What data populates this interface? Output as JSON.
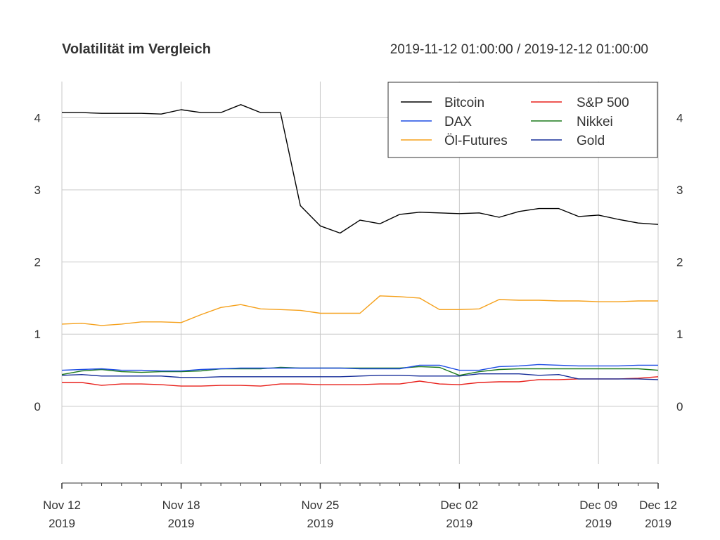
{
  "chart_data": {
    "type": "line",
    "title": "Volatilität im Vergleich",
    "subtitle": "2019-11-12 01:00:00 / 2019-12-12 01:00:00",
    "xlim": [
      "2019-11-12",
      "2019-12-12"
    ],
    "ylim": [
      -0.8,
      4.5
    ],
    "y_ticks": [
      "0",
      "1",
      "2",
      "3",
      "4"
    ],
    "x_ticks": [
      {
        "date": "2019-11-12",
        "line1": "Nov 12",
        "line2": "2019"
      },
      {
        "date": "2019-11-18",
        "line1": "Nov 18",
        "line2": "2019"
      },
      {
        "date": "2019-11-25",
        "line1": "Nov 25",
        "line2": "2019"
      },
      {
        "date": "2019-12-02",
        "line1": "Dec 02",
        "line2": "2019"
      },
      {
        "date": "2019-12-09",
        "line1": "Dec 09",
        "line2": "2019"
      },
      {
        "date": "2019-12-12",
        "line1": "Dec 12",
        "line2": "2019"
      }
    ],
    "grid": true,
    "legend_position": "top-right",
    "x": [
      "2019-11-12",
      "2019-11-13",
      "2019-11-14",
      "2019-11-15",
      "2019-11-16",
      "2019-11-17",
      "2019-11-18",
      "2019-11-19",
      "2019-11-20",
      "2019-11-21",
      "2019-11-22",
      "2019-11-23",
      "2019-11-24",
      "2019-11-25",
      "2019-11-26",
      "2019-11-27",
      "2019-11-28",
      "2019-11-29",
      "2019-11-30",
      "2019-12-01",
      "2019-12-02",
      "2019-12-03",
      "2019-12-04",
      "2019-12-05",
      "2019-12-06",
      "2019-12-07",
      "2019-12-08",
      "2019-12-09",
      "2019-12-10",
      "2019-12-11",
      "2019-12-12"
    ],
    "series": [
      {
        "name": "Bitcoin",
        "color": "#000000",
        "values": [
          4.07,
          4.07,
          4.06,
          4.06,
          4.06,
          4.05,
          4.11,
          4.07,
          4.07,
          4.18,
          4.07,
          4.07,
          2.78,
          2.5,
          2.4,
          2.58,
          2.53,
          2.66,
          2.69,
          2.68,
          2.67,
          2.68,
          2.62,
          2.7,
          2.74,
          2.74,
          2.63,
          2.65,
          2.59,
          2.54,
          2.52
        ]
      },
      {
        "name": "S&P 500",
        "color": "#e8201b",
        "values": [
          0.33,
          0.33,
          0.29,
          0.31,
          0.31,
          0.3,
          0.28,
          0.28,
          0.29,
          0.29,
          0.28,
          0.31,
          0.31,
          0.3,
          0.3,
          0.3,
          0.31,
          0.31,
          0.35,
          0.31,
          0.3,
          0.33,
          0.34,
          0.34,
          0.37,
          0.37,
          0.38,
          0.38,
          0.38,
          0.39,
          0.41
        ]
      },
      {
        "name": "DAX",
        "color": "#1c4be3",
        "values": [
          0.5,
          0.51,
          0.52,
          0.5,
          0.5,
          0.49,
          0.49,
          0.51,
          0.52,
          0.53,
          0.53,
          0.53,
          0.53,
          0.53,
          0.53,
          0.52,
          0.52,
          0.52,
          0.57,
          0.57,
          0.5,
          0.5,
          0.55,
          0.56,
          0.58,
          0.57,
          0.56,
          0.56,
          0.56,
          0.57,
          0.57
        ]
      },
      {
        "name": "Nikkei",
        "color": "#1c7a1c",
        "values": [
          0.44,
          0.49,
          0.51,
          0.48,
          0.47,
          0.48,
          0.48,
          0.49,
          0.52,
          0.52,
          0.52,
          0.54,
          0.53,
          0.53,
          0.53,
          0.53,
          0.53,
          0.53,
          0.55,
          0.54,
          0.43,
          0.48,
          0.51,
          0.52,
          0.52,
          0.52,
          0.52,
          0.52,
          0.52,
          0.52,
          0.5
        ]
      },
      {
        "name": "Öl-Futures",
        "color": "#f5a01a",
        "values": [
          1.14,
          1.15,
          1.12,
          1.14,
          1.17,
          1.17,
          1.16,
          1.27,
          1.37,
          1.41,
          1.35,
          1.34,
          1.33,
          1.29,
          1.29,
          1.29,
          1.53,
          1.52,
          1.5,
          1.34,
          1.34,
          1.35,
          1.48,
          1.47,
          1.47,
          1.46,
          1.46,
          1.45,
          1.45,
          1.46,
          1.46
        ]
      },
      {
        "name": "Gold",
        "color": "#172e99",
        "values": [
          0.43,
          0.44,
          0.42,
          0.42,
          0.42,
          0.42,
          0.4,
          0.4,
          0.41,
          0.41,
          0.41,
          0.41,
          0.41,
          0.41,
          0.41,
          0.42,
          0.43,
          0.43,
          0.42,
          0.42,
          0.42,
          0.45,
          0.45,
          0.45,
          0.43,
          0.44,
          0.38,
          0.38,
          0.38,
          0.38,
          0.37
        ]
      }
    ]
  }
}
